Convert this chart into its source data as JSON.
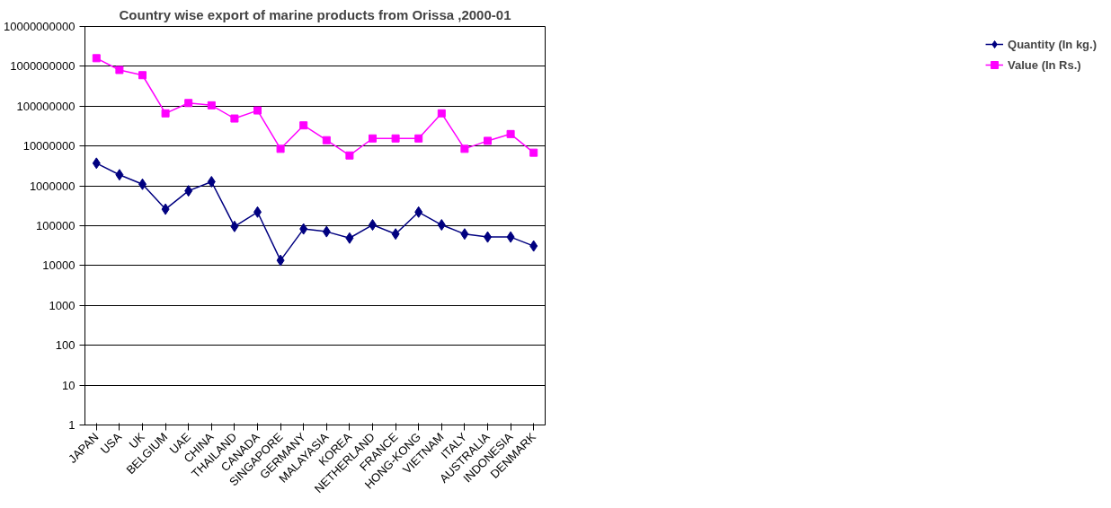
{
  "chart_data": {
    "type": "line",
    "title": "Country wise export of marine products from Orissa ,2000-01",
    "categories": [
      "JAPAN",
      "USA",
      "UK",
      "BELGIUM",
      "UAE",
      "CHINA",
      "THAILAND",
      "CANADA",
      "SINGAPORE",
      "GERMANY",
      "MALAYASIA",
      "KOREA",
      "NETHERLAND",
      "FRANCE",
      "HONG-KONG",
      "VIETNAM",
      "ITALY",
      "AUSTRALIA",
      "INDONESIA",
      "DENMARK"
    ],
    "series": [
      {
        "name": "Quantity (In kg.)",
        "color": "#000080",
        "marker": "diamond",
        "values": [
          3700000,
          1900000,
          1100000,
          260000,
          750000,
          1270000,
          96000,
          220000,
          13500,
          83000,
          71000,
          49000,
          105000,
          62000,
          220000,
          105000,
          62000,
          52000,
          52000,
          31000
        ]
      },
      {
        "name": "Value (In Rs.)",
        "color": "#ff00ff",
        "marker": "square",
        "values": [
          1600000000,
          810000000,
          600000000,
          66000000,
          120000000,
          105000000,
          49000000,
          78000000,
          8500000,
          33000000,
          14000000,
          5800000,
          15500000,
          15500000,
          15500000,
          66000000,
          8500000,
          13500000,
          20000000,
          6800000
        ]
      }
    ],
    "log": "y",
    "ylim": [
      1,
      10000000000
    ],
    "yticks": [
      1,
      10,
      100,
      1000,
      10000,
      100000,
      1000000,
      10000000,
      100000000,
      1000000000,
      10000000000
    ],
    "grid": "y",
    "legend": "right",
    "line_style": "solid"
  }
}
